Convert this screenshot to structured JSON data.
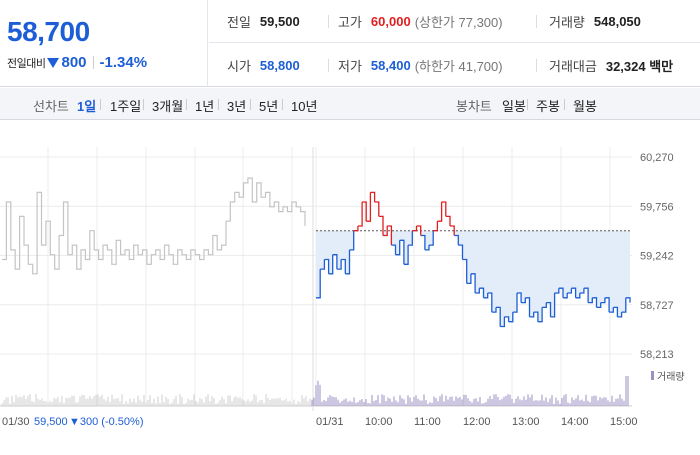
{
  "summary": {
    "price": "58,700",
    "change_label": "전일대비",
    "change_abs": "800",
    "change_pct": "-1.34%",
    "direction": "down",
    "prev_close": {
      "label": "전일",
      "value": "59,500"
    },
    "high": {
      "label": "고가",
      "value": "60,000",
      "sub": "(상한가 77,300)"
    },
    "volume": {
      "label": "거래량",
      "value": "548,050"
    },
    "open": {
      "label": "시가",
      "value": "58,800"
    },
    "low": {
      "label": "저가",
      "value": "58,400",
      "sub": "(하한가 41,700)"
    },
    "trade_value": {
      "label": "거래대금",
      "value": "32,324 백만"
    }
  },
  "tabs": {
    "line_chart_head": "선차트",
    "line_items": [
      "1일",
      "1주일",
      "3개월",
      "1년",
      "3년",
      "5년",
      "10년"
    ],
    "active": "1일",
    "candle_head": "봉차트",
    "candle_items": [
      "일봉",
      "주봉",
      "월봉"
    ]
  },
  "colors": {
    "up": "#e02020",
    "down": "#1d5ed6",
    "prev_day": "#c4c4c4",
    "fill": "#e3ecf9",
    "volume": "#9b8fc6"
  },
  "chart_data": {
    "type": "line",
    "y_ticks": [
      "60,270",
      "59,756",
      "59,242",
      "58,727",
      "58,213"
    ],
    "ylim": [
      58213,
      60270
    ],
    "reference_price": 59500,
    "x_ticks": [
      "01/31",
      "10:00",
      "11:00",
      "12:00",
      "13:00",
      "14:00",
      "15:00"
    ],
    "prev_day_label": "01/30",
    "prev_day_summary_price": "59,500",
    "prev_day_summary_change": "▼300 (-0.50%)",
    "volume_legend": "거래량",
    "prev_day_series": {
      "name": "01/30",
      "values": [
        59200,
        59800,
        59300,
        59100,
        59650,
        59350,
        59150,
        59050,
        59900,
        59350,
        59600,
        59250,
        59100,
        59450,
        59800,
        59250,
        59350,
        59100,
        59300,
        59200,
        59500,
        59300,
        59200,
        59350,
        59300,
        59150,
        59400,
        59250,
        59300,
        59200,
        59350,
        59250,
        59300,
        59150,
        59250,
        59300,
        59200,
        59350,
        59250,
        59150,
        59300,
        59250,
        59200,
        59300,
        59250,
        59200,
        59300,
        59250,
        59450,
        59300,
        59350,
        59600,
        59800,
        59900,
        59850,
        60000,
        60050,
        59800,
        60000,
        59850,
        59900,
        59750,
        59800,
        59700,
        59750,
        59700,
        59800,
        59750,
        59700,
        59550
      ]
    },
    "today_series": {
      "name": "01/31",
      "values": [
        58800,
        59100,
        59200,
        59050,
        59250,
        59100,
        59200,
        59050,
        59300,
        59500,
        59550,
        59800,
        59600,
        59900,
        59800,
        59650,
        59450,
        59550,
        59350,
        59250,
        59400,
        59150,
        59350,
        59500,
        59550,
        59450,
        59300,
        59350,
        59500,
        59600,
        59800,
        59650,
        59550,
        59450,
        59350,
        59200,
        58950,
        59050,
        58850,
        58900,
        58800,
        58850,
        58650,
        58700,
        58500,
        58600,
        58550,
        58650,
        58850,
        58750,
        58800,
        58600,
        58650,
        58550,
        58700,
        58750,
        58600,
        58850,
        58900,
        58800,
        58850,
        58900,
        58800,
        58850,
        58900,
        58750,
        58800,
        58700,
        58750,
        58800,
        58650,
        58700,
        58600,
        58650,
        58800,
        58750
      ]
    }
  }
}
